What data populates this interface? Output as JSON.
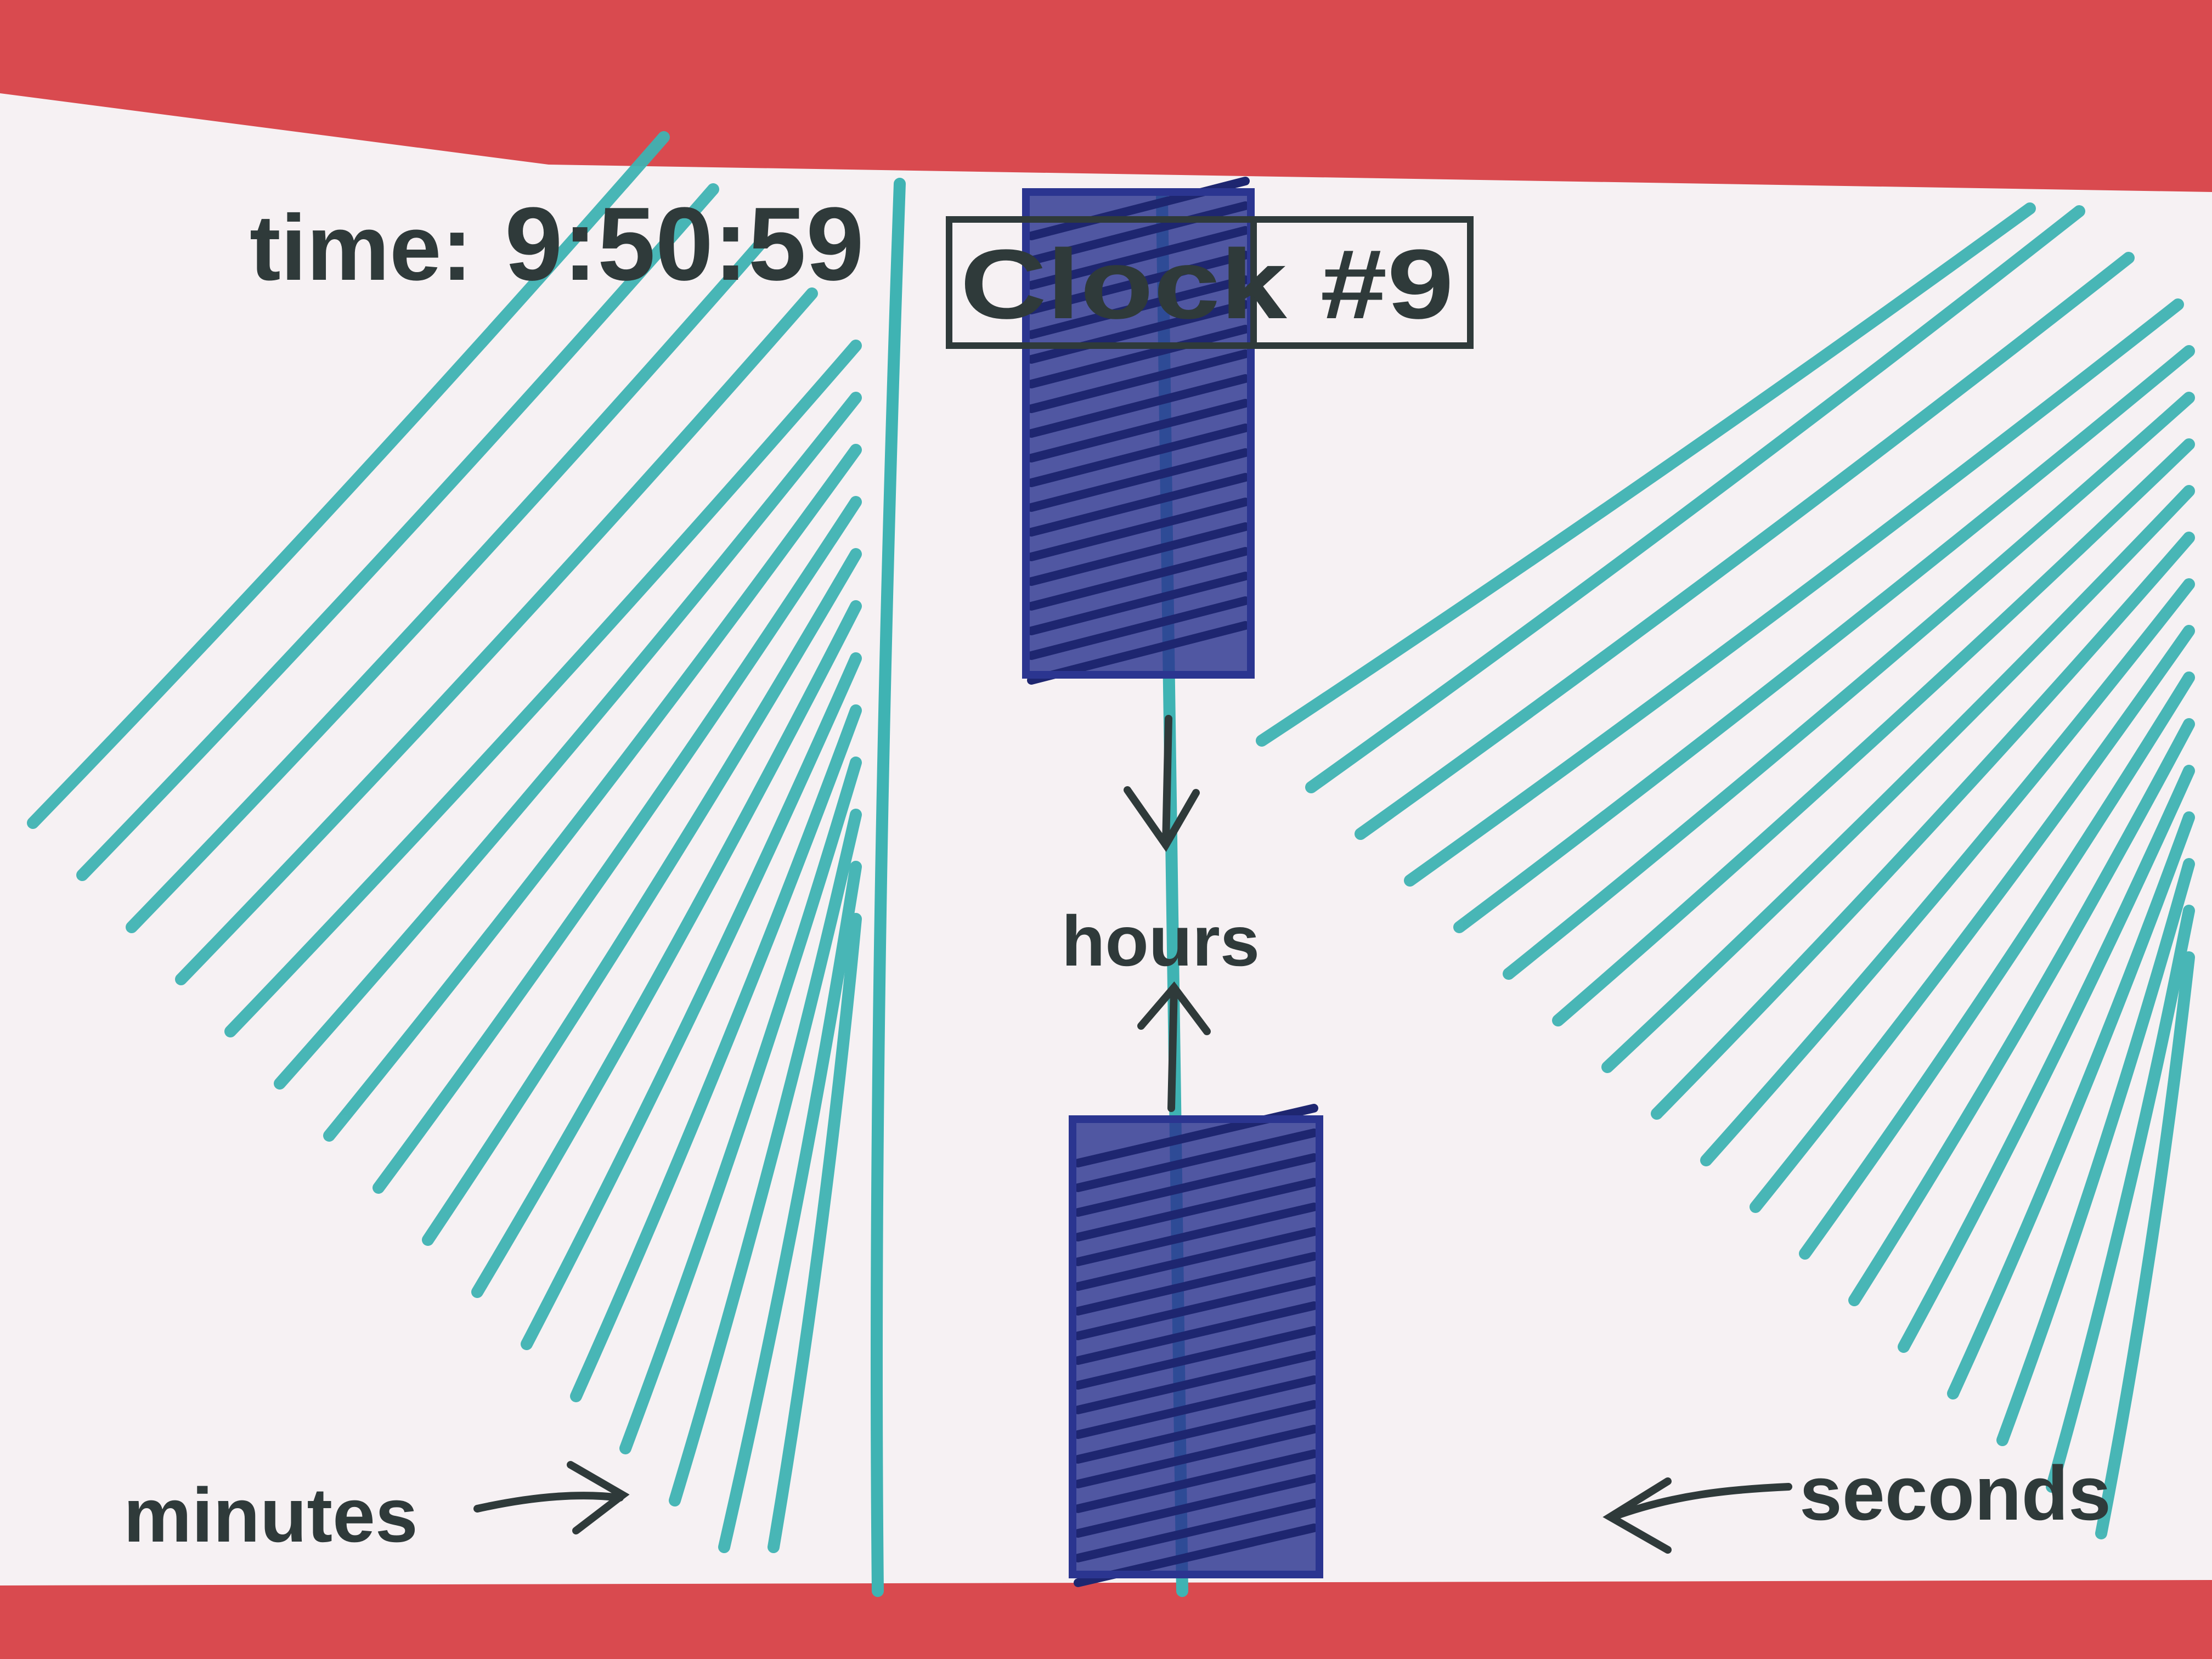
{
  "sketch": {
    "time_label": "time:",
    "time_value": "9:50:59",
    "title": "Clock #9",
    "hours_label": "hours",
    "minutes_label": "minutes",
    "seconds_label": "seconds"
  },
  "colors": {
    "background": "#d94a4f",
    "paper": "#f6f1f3",
    "teal_marker": "#3fb3b3",
    "navy_marker": "#2b3590",
    "ink": "#2f3a3a"
  }
}
